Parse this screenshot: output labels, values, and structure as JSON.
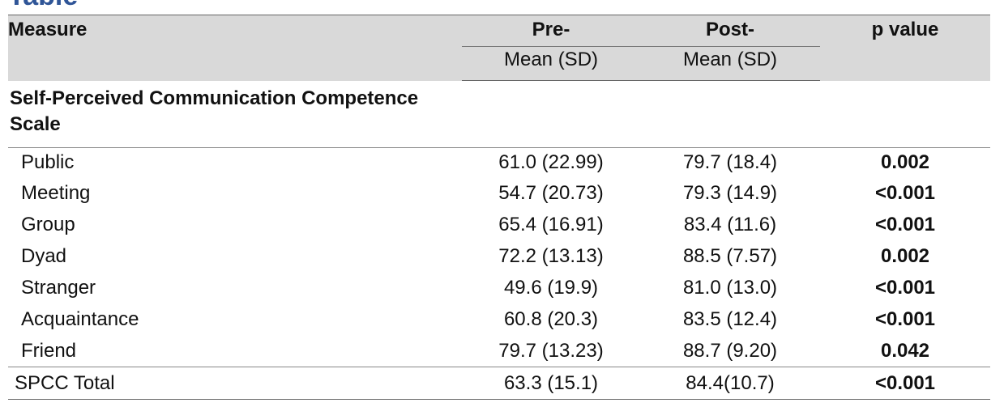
{
  "page_title": "Table",
  "header": {
    "measure": "Measure",
    "pre": "Pre-",
    "post": "Post-",
    "p_value": "p value",
    "pre_sub": "Mean (SD)",
    "post_sub": "Mean (SD)"
  },
  "section_label": "Self-Perceived Communication Competence Scale",
  "rows": [
    {
      "measure": "Public",
      "pre": "61.0 (22.99)",
      "post": "79.7 (18.4)",
      "p": "0.002"
    },
    {
      "measure": "Meeting",
      "pre": "54.7 (20.73)",
      "post": "79.3 (14.9)",
      "p": "<0.001"
    },
    {
      "measure": "Group",
      "pre": "65.4 (16.91)",
      "post": "83.4 (11.6)",
      "p": "<0.001"
    },
    {
      "measure": "Dyad",
      "pre": "72.2 (13.13)",
      "post": "88.5 (7.57)",
      "p": "0.002"
    },
    {
      "measure": "Stranger",
      "pre": "49.6 (19.9)",
      "post": "81.0 (13.0)",
      "p": "<0.001"
    },
    {
      "measure": "Acquaintance",
      "pre": "60.8 (20.3)",
      "post": "83.5 (12.4)",
      "p": "<0.001"
    },
    {
      "measure": "Friend",
      "pre": "79.7 (13.23)",
      "post": "88.7 (9.20)",
      "p": "0.042"
    }
  ],
  "total_row": {
    "measure": "SPCC Total",
    "pre": "63.3 (15.1)",
    "post": "84.4(10.7)",
    "p": "<0.001"
  }
}
